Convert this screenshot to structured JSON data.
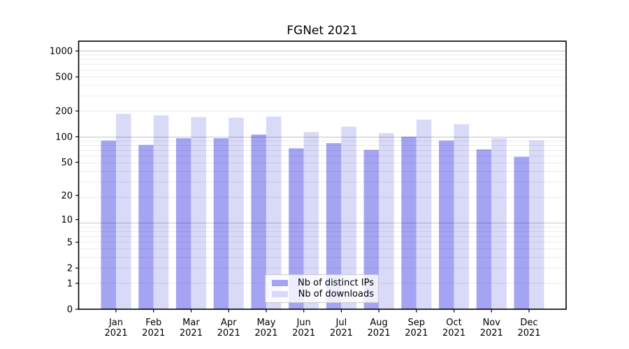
{
  "chart_data": {
    "type": "bar",
    "title": "FGNet 2021",
    "scale": "log1p",
    "grid": true,
    "legend_position": "lower center",
    "year": "2021",
    "categories": [
      "Jan",
      "Feb",
      "Mar",
      "Apr",
      "May",
      "Jun",
      "Jul",
      "Aug",
      "Sep",
      "Oct",
      "Nov",
      "Dec"
    ],
    "yticks": [
      0,
      1,
      2,
      5,
      10,
      20,
      50,
      100,
      200,
      500,
      1000
    ],
    "ylim": [
      0,
      1300
    ],
    "series": [
      {
        "name": "Nb of distinct IPs",
        "color": "#a4a4f2",
        "values": [
          90,
          80,
          96,
          96,
          106,
          73,
          84,
          70,
          100,
          90,
          71,
          58
        ]
      },
      {
        "name": "Nb of downloads",
        "color": "#d9d9f8",
        "values": [
          185,
          178,
          170,
          167,
          172,
          113,
          131,
          110,
          158,
          140,
          96,
          90
        ]
      }
    ]
  }
}
